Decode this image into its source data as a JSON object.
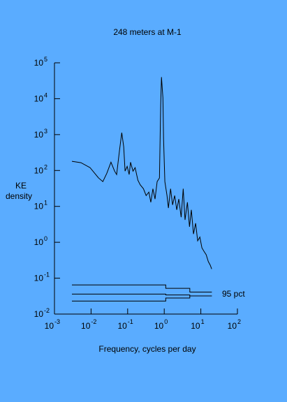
{
  "chart_data": {
    "type": "line",
    "title": "248 meters at M-1",
    "ylabel": [
      "KE",
      "density"
    ],
    "xlabel": "Frequency, cycles per day",
    "annotation": "95 pct",
    "log_x": true,
    "log_y": true,
    "xlim": [
      0.001,
      100
    ],
    "ylim": [
      0.01,
      100000
    ],
    "xticks": [
      {
        "value": 0.001,
        "label": "10",
        "exponent": "-3"
      },
      {
        "value": 0.01,
        "label": "10",
        "exponent": "-2"
      },
      {
        "value": 0.1,
        "label": "10",
        "exponent": "-1"
      },
      {
        "value": 1,
        "label": "10",
        "exponent": "0"
      },
      {
        "value": 10,
        "label": "10",
        "exponent": "1"
      },
      {
        "value": 100,
        "label": "10",
        "exponent": "2"
      }
    ],
    "yticks": [
      {
        "value": 0.01,
        "label": "10",
        "exponent": "-2"
      },
      {
        "value": 0.1,
        "label": "10",
        "exponent": "-1"
      },
      {
        "value": 1,
        "label": "10",
        "exponent": "0"
      },
      {
        "value": 10,
        "label": "10",
        "exponent": "1"
      },
      {
        "value": 100,
        "label": "10",
        "exponent": "2"
      },
      {
        "value": 1000,
        "label": "10",
        "exponent": "3"
      },
      {
        "value": 10000,
        "label": "10",
        "exponent": "4"
      },
      {
        "value": 100000,
        "label": "10",
        "exponent": "5"
      }
    ],
    "series": [
      {
        "color": "#000000",
        "x": [
          0.003,
          0.0053,
          0.0094,
          0.016,
          0.021,
          0.027,
          0.035,
          0.044,
          0.05,
          0.06,
          0.069,
          0.078,
          0.085,
          0.097,
          0.11,
          0.12,
          0.14,
          0.16,
          0.19,
          0.22,
          0.27,
          0.32,
          0.38,
          0.43,
          0.49,
          0.56,
          0.64,
          0.74,
          0.8,
          0.84,
          0.92,
          0.96,
          1.04,
          1.19,
          1.3,
          1.49,
          1.69,
          1.93,
          2.2,
          2.5,
          2.9,
          3.3,
          3.7,
          4.3,
          4.9,
          5.5,
          6.3,
          7.2,
          8.2,
          9.4,
          10.7,
          12.2,
          14,
          16,
          18.1,
          19.8
        ],
        "values": [
          180,
          165,
          120,
          62,
          49,
          84,
          170,
          96,
          77,
          370,
          1130,
          460,
          96,
          130,
          77,
          170,
          96,
          120,
          54,
          40,
          31,
          20,
          25,
          13,
          31,
          16,
          49,
          62,
          6800,
          40000,
          10600,
          720,
          49,
          20,
          9,
          31,
          11,
          20,
          8,
          16,
          5,
          31,
          4.2,
          13,
          2.7,
          8,
          1.7,
          3.4,
          1.1,
          1.4,
          0.7,
          0.56,
          0.45,
          0.29,
          0.23,
          0.18
        ]
      },
      {
        "color": "#000000",
        "x": [
          0.003,
          1.1,
          1.1,
          5,
          5,
          20
        ],
        "values": [
          0.065,
          0.065,
          0.052,
          0.052,
          0.041,
          0.041
        ]
      },
      {
        "color": "#000000",
        "x": [
          0.003,
          1.1,
          1.1,
          5,
          5,
          20
        ],
        "values": [
          0.036,
          0.036,
          0.034,
          0.034,
          0.032,
          0.032
        ]
      },
      {
        "color": "#000000",
        "x": [
          0.003,
          1.1,
          1.1,
          5,
          5,
          20
        ],
        "values": [
          0.023,
          0.023,
          0.028,
          0.028,
          0.032,
          0.032
        ]
      }
    ]
  }
}
